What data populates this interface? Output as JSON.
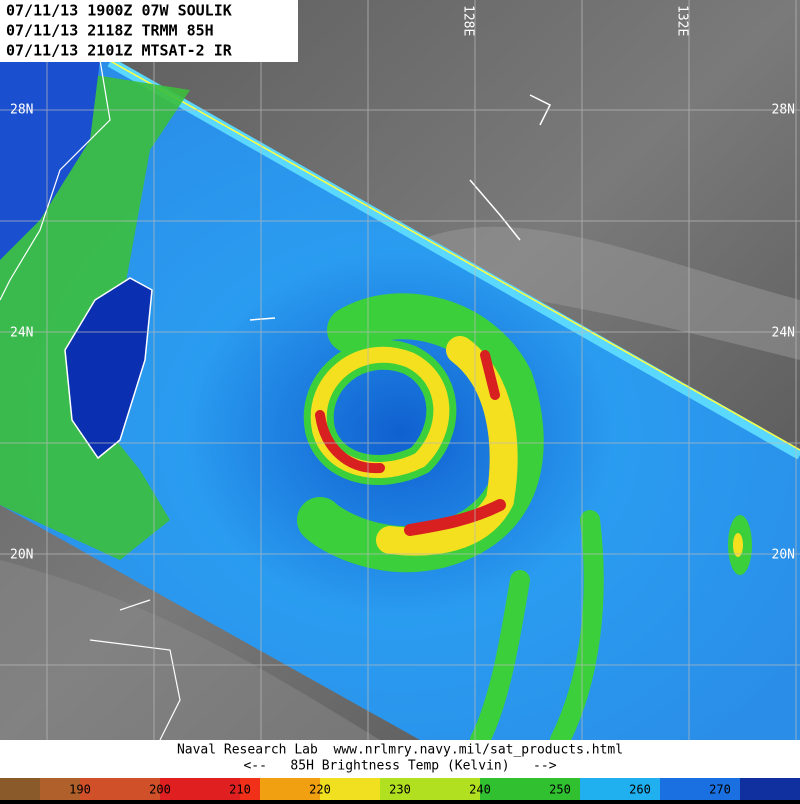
{
  "header": {
    "lines": [
      "07/11/13 1900Z 07W SOULIK",
      "07/11/13 2118Z TRMM 85H",
      "07/11/13 2101Z MTSAT-2 IR"
    ]
  },
  "grid": {
    "lat_labels": [
      "28N",
      "24N",
      "20N"
    ],
    "lon_labels": [
      "128E",
      "132E"
    ]
  },
  "footer": {
    "credit": "Naval Research Lab  www.nrlmry.navy.mil/sat_products.html",
    "legend_title": "<--   85H Brightness Temp (Kelvin)   -->"
  },
  "colorbar": {
    "labels": [
      190,
      200,
      210,
      220,
      230,
      240,
      250,
      260,
      270
    ]
  }
}
